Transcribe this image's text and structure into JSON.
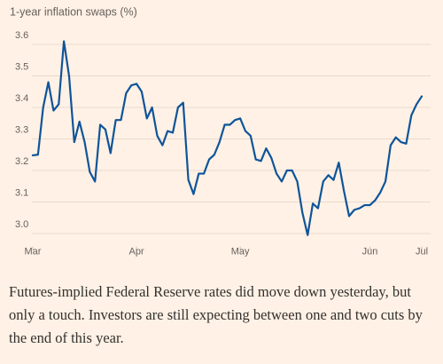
{
  "chart_data": {
    "type": "line",
    "y_label": "1-year inflation swaps (%)",
    "categories": [
      "Mar",
      null,
      null,
      null,
      null,
      null,
      null,
      null,
      null,
      null,
      null,
      null,
      null,
      null,
      null,
      null,
      null,
      null,
      null,
      null,
      "Apr",
      null,
      null,
      null,
      null,
      null,
      null,
      null,
      null,
      null,
      null,
      null,
      null,
      null,
      null,
      null,
      null,
      null,
      null,
      null,
      "May",
      null,
      null,
      null,
      null,
      null,
      null,
      null,
      null,
      null,
      null,
      null,
      null,
      null,
      null,
      null,
      null,
      null,
      null,
      null,
      null,
      null,
      null,
      null,
      null,
      "Jun",
      null,
      null,
      null,
      null,
      null,
      null,
      null,
      null,
      null,
      "Jul"
    ],
    "series": [
      {
        "name": "1-year inflation swaps",
        "color": "#0f5499",
        "values": [
          3.248,
          3.25,
          3.4,
          3.48,
          3.39,
          3.41,
          3.61,
          3.5,
          3.29,
          3.355,
          3.29,
          3.195,
          3.165,
          3.345,
          3.33,
          3.255,
          3.36,
          3.36,
          3.445,
          3.47,
          3.475,
          3.45,
          3.365,
          3.4,
          3.31,
          3.28,
          3.325,
          3.32,
          3.4,
          3.415,
          3.17,
          3.125,
          3.19,
          3.19,
          3.235,
          3.25,
          3.29,
          3.345,
          3.345,
          3.36,
          3.365,
          3.325,
          3.31,
          3.235,
          3.23,
          3.27,
          3.24,
          3.19,
          3.165,
          3.2,
          3.2,
          3.165,
          3.065,
          2.995,
          3.095,
          3.08,
          3.165,
          3.185,
          3.17,
          3.225,
          3.135,
          3.055,
          3.075,
          3.08,
          3.09,
          3.09,
          3.105,
          3.13,
          3.165,
          3.28,
          3.305,
          3.29,
          3.285,
          3.375,
          3.41,
          3.435
        ]
      }
    ],
    "ylim": [
      2.95,
      3.65
    ],
    "yticks": [
      {
        "value": 3,
        "label": "3.0"
      },
      3.1,
      3.2,
      3.3,
      3.4,
      3.5,
      3.6
    ],
    "grid": true
  },
  "paragraph": "Futures-implied Federal Reserve rates did move down yesterday, but only a touch. Investors are still expecting between one and two cuts by the end of this year."
}
